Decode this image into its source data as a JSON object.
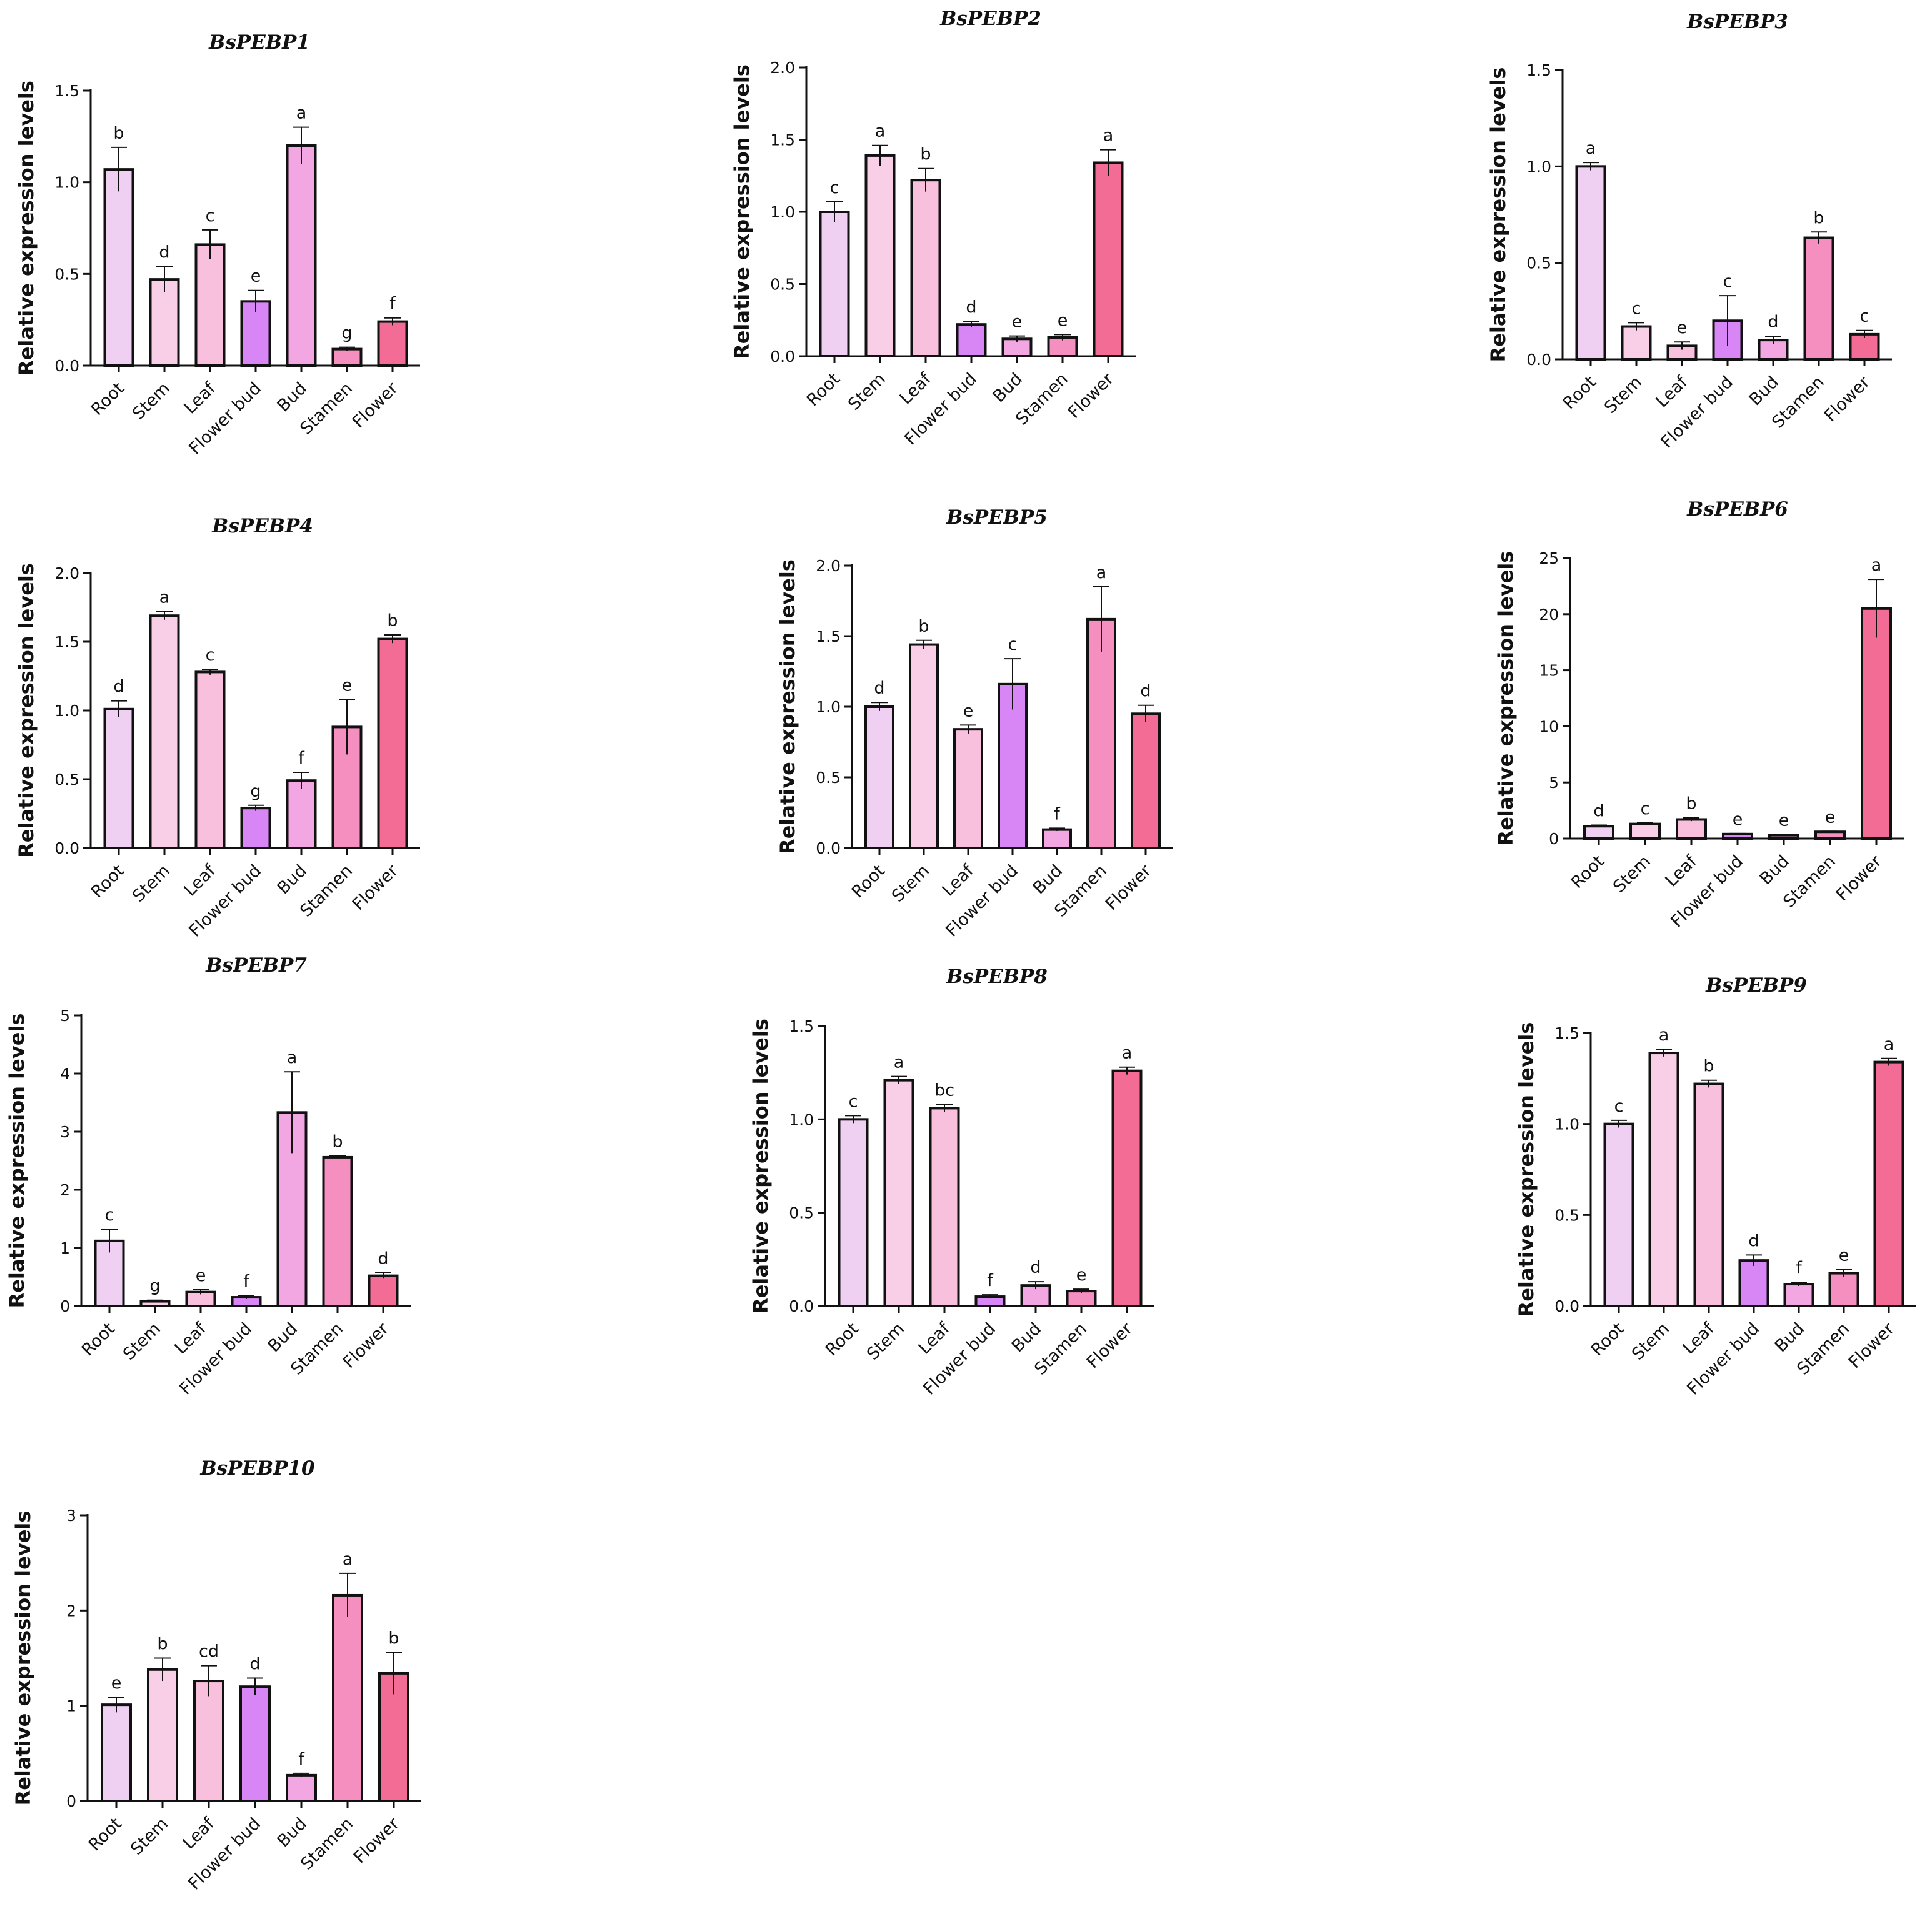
{
  "chart_data": [
    {
      "type": "bar",
      "title": "BsPEBP1",
      "ylabel": "Relative expression levels",
      "xlabel": "",
      "categories": [
        "Root",
        "Stem",
        "Leaf",
        "Flower bud",
        "Bud",
        "Stamen",
        "Flower"
      ],
      "values": [
        1.07,
        0.47,
        0.66,
        0.35,
        1.2,
        0.09,
        0.24
      ],
      "errors": [
        0.12,
        0.07,
        0.08,
        0.06,
        0.1,
        0.01,
        0.02
      ],
      "significance": [
        "b",
        "d",
        "c",
        "e",
        "a",
        "g",
        "f"
      ],
      "ylim": [
        0,
        1.5
      ],
      "yticks": [
        "0.0",
        "0.5",
        "1.0",
        "1.5"
      ]
    },
    {
      "type": "bar",
      "title": "BsPEBP2",
      "ylabel": "Relative expression levels",
      "xlabel": "",
      "categories": [
        "Root",
        "Stem",
        "Leaf",
        "Flower bud",
        "Bud",
        "Stamen",
        "Flower"
      ],
      "values": [
        1.0,
        1.39,
        1.22,
        0.22,
        0.12,
        0.13,
        1.34
      ],
      "errors": [
        0.07,
        0.07,
        0.08,
        0.02,
        0.02,
        0.02,
        0.09
      ],
      "significance": [
        "c",
        "a",
        "b",
        "d",
        "e",
        "e",
        "a"
      ],
      "ylim": [
        0,
        2.0
      ],
      "yticks": [
        "0.0",
        "0.5",
        "1.0",
        "1.5",
        "2.0"
      ]
    },
    {
      "type": "bar",
      "title": "BsPEBP3",
      "ylabel": "Relative expression levels",
      "xlabel": "",
      "categories": [
        "Root",
        "Stem",
        "Leaf",
        "Flower bud",
        "Bud",
        "Stamen",
        "Flower"
      ],
      "values": [
        1.0,
        0.17,
        0.07,
        0.2,
        0.1,
        0.63,
        0.13
      ],
      "errors": [
        0.02,
        0.02,
        0.02,
        0.13,
        0.02,
        0.03,
        0.02
      ],
      "significance": [
        "a",
        "c",
        "e",
        "c",
        "d",
        "b",
        "c"
      ],
      "ylim": [
        0,
        1.5
      ],
      "yticks": [
        "0.0",
        "0.5",
        "1.0",
        "1.5"
      ]
    },
    {
      "type": "bar",
      "title": "BsPEBP4",
      "ylabel": "Relative expression levels",
      "xlabel": "",
      "categories": [
        "Root",
        "Stem",
        "Leaf",
        "Flower bud",
        "Bud",
        "Stamen",
        "Flower"
      ],
      "values": [
        1.01,
        1.69,
        1.28,
        0.29,
        0.49,
        0.88,
        1.52
      ],
      "errors": [
        0.06,
        0.03,
        0.02,
        0.02,
        0.06,
        0.2,
        0.03
      ],
      "significance": [
        "d",
        "a",
        "c",
        "g",
        "f",
        "e",
        "b"
      ],
      "ylim": [
        0,
        2.0
      ],
      "yticks": [
        "0.0",
        "0.5",
        "1.0",
        "1.5",
        "2.0"
      ]
    },
    {
      "type": "bar",
      "title": "BsPEBP5",
      "ylabel": "Relative expression levels",
      "xlabel": "",
      "categories": [
        "Root",
        "Stem",
        "Leaf",
        "Flower bud",
        "Bud",
        "Stamen",
        "Flower"
      ],
      "values": [
        1.0,
        1.44,
        0.84,
        1.16,
        0.13,
        1.62,
        0.95
      ],
      "errors": [
        0.03,
        0.03,
        0.03,
        0.18,
        0.01,
        0.23,
        0.06
      ],
      "significance": [
        "d",
        "b",
        "e",
        "c",
        "f",
        "a",
        "d"
      ],
      "ylim": [
        0,
        2.0
      ],
      "yticks": [
        "0.0",
        "0.5",
        "1.0",
        "1.5",
        "2.0"
      ]
    },
    {
      "type": "bar",
      "title": "BsPEBP6",
      "ylabel": "Relative expression levels",
      "xlabel": "",
      "categories": [
        "Root",
        "Stem",
        "Leaf",
        "Flower bud",
        "Bud",
        "Stamen",
        "Flower"
      ],
      "values": [
        1.1,
        1.3,
        1.7,
        0.4,
        0.3,
        0.6,
        20.5
      ],
      "errors": [
        0.1,
        0.1,
        0.15,
        0.05,
        0.05,
        0.05,
        2.6
      ],
      "significance": [
        "d",
        "c",
        "b",
        "e",
        "e",
        "e",
        "a"
      ],
      "ylim": [
        0,
        25
      ],
      "yticks": [
        "0",
        "5",
        "10",
        "15",
        "20",
        "25"
      ]
    },
    {
      "type": "bar",
      "title": "BsPEBP7",
      "ylabel": "Relative expression levels",
      "xlabel": "",
      "categories": [
        "Root",
        "Stem",
        "Leaf",
        "Flower bud",
        "Bud",
        "Stamen",
        "Flower"
      ],
      "values": [
        1.12,
        0.08,
        0.24,
        0.15,
        3.33,
        2.56,
        0.52
      ],
      "errors": [
        0.2,
        0.02,
        0.04,
        0.03,
        0.7,
        0.02,
        0.05
      ],
      "significance": [
        "c",
        "g",
        "e",
        "f",
        "a",
        "b",
        "d"
      ],
      "ylim": [
        0,
        5
      ],
      "yticks": [
        "0",
        "1",
        "2",
        "3",
        "4",
        "5"
      ]
    },
    {
      "type": "bar",
      "title": "BsPEBP8",
      "ylabel": "Relative expression levels",
      "xlabel": "",
      "categories": [
        "Root",
        "Stem",
        "Leaf",
        "Flower bud",
        "Bud",
        "Stamen",
        "Flower"
      ],
      "values": [
        1.0,
        1.21,
        1.06,
        0.05,
        0.11,
        0.08,
        1.26
      ],
      "errors": [
        0.02,
        0.02,
        0.02,
        0.01,
        0.02,
        0.01,
        0.02
      ],
      "significance": [
        "c",
        "a",
        "bc",
        "f",
        "d",
        "e",
        "a"
      ],
      "ylim": [
        0,
        1.5
      ],
      "yticks": [
        "0.0",
        "0.5",
        "1.0",
        "1.5"
      ]
    },
    {
      "type": "bar",
      "title": "BsPEBP9",
      "ylabel": "Relative expression levels",
      "xlabel": "",
      "categories": [
        "Root",
        "Stem",
        "Leaf",
        "Flower bud",
        "Bud",
        "Stamen",
        "Flower"
      ],
      "values": [
        1.0,
        1.39,
        1.22,
        0.25,
        0.12,
        0.18,
        1.34
      ],
      "errors": [
        0.02,
        0.02,
        0.02,
        0.03,
        0.01,
        0.02,
        0.02
      ],
      "significance": [
        "c",
        "a",
        "b",
        "d",
        "f",
        "e",
        "a"
      ],
      "ylim": [
        0,
        1.5
      ],
      "yticks": [
        "0.0",
        "0.5",
        "1.0",
        "1.5"
      ]
    },
    {
      "type": "bar",
      "title": "BsPEBP10",
      "ylabel": "Relative expression levels",
      "xlabel": "",
      "categories": [
        "Root",
        "Stem",
        "Leaf",
        "Flower bud",
        "Bud",
        "Stamen",
        "Flower"
      ],
      "values": [
        1.01,
        1.38,
        1.26,
        1.2,
        0.27,
        2.16,
        1.34
      ],
      "errors": [
        0.08,
        0.12,
        0.16,
        0.09,
        0.02,
        0.23,
        0.22
      ],
      "significance": [
        "e",
        "b",
        "cd",
        "d",
        "f",
        "a",
        "b"
      ],
      "ylim": [
        0,
        3
      ],
      "yticks": [
        "0",
        "1",
        "2",
        "3"
      ]
    }
  ],
  "bar_colors": [
    "#EFCFF2",
    "#F9CFE8",
    "#F9C0DD",
    "#D885F5",
    "#F2A6E2",
    "#F48FC0",
    "#F26C96"
  ],
  "axis_color": "#111111"
}
